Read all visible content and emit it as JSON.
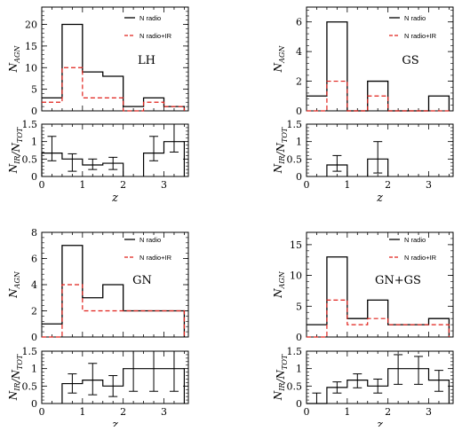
{
  "chart_data": [
    {
      "type": "step",
      "panel_label": "LH",
      "ylabel": "N_AGN",
      "xlim": [
        0,
        3.6
      ],
      "ylim": [
        0,
        24
      ],
      "yticks": [
        0,
        5,
        10,
        15,
        20
      ],
      "bin_edges": [
        0,
        0.5,
        1.0,
        1.5,
        2.0,
        2.5,
        3.0,
        3.5
      ],
      "series": [
        {
          "name": "N radio",
          "color": "#000000",
          "dash": "",
          "values": [
            3,
            20,
            9,
            8,
            1,
            3,
            1
          ]
        },
        {
          "name": "N radio+IR",
          "color": "#e0201a",
          "dash": "5,3",
          "values": [
            2,
            10,
            3,
            3,
            0,
            2,
            1
          ]
        }
      ],
      "ratio": {
        "ylabel": "N_IR/N_TOT",
        "ylim": [
          0,
          1.5
        ],
        "yticks": [
          0,
          0.5,
          1,
          1.5
        ],
        "xlabel": "z",
        "xticks": [
          0,
          1,
          2,
          3
        ],
        "values": [
          0.67,
          0.5,
          0.33,
          0.38,
          0,
          0.67,
          1.0
        ],
        "err_low": [
          0.45,
          0.15,
          0.2,
          0.2,
          null,
          0.45,
          0.7
        ],
        "err_high": [
          1.15,
          0.65,
          0.5,
          0.55,
          null,
          1.15,
          1.5
        ],
        "show_points": [
          true,
          true,
          true,
          true,
          false,
          true,
          false
        ]
      }
    },
    {
      "type": "step",
      "panel_label": "GS",
      "ylabel": "N_AGN",
      "xlim": [
        0,
        3.6
      ],
      "ylim": [
        0,
        7
      ],
      "yticks": [
        0,
        2,
        4,
        6
      ],
      "bin_edges": [
        0,
        0.5,
        1.0,
        1.5,
        2.0,
        2.5,
        3.0,
        3.5
      ],
      "series": [
        {
          "name": "N radio",
          "color": "#000000",
          "dash": "",
          "values": [
            1,
            6,
            0,
            2,
            0,
            0,
            1
          ]
        },
        {
          "name": "N radio+IR",
          "color": "#e0201a",
          "dash": "5,3",
          "values": [
            0,
            2,
            0,
            1,
            0,
            0,
            0
          ]
        }
      ],
      "ratio": {
        "ylabel": "N_IR/N_TOT",
        "ylim": [
          0,
          1.5
        ],
        "yticks": [
          0,
          0.5,
          1,
          1.5
        ],
        "xlabel": "z",
        "xticks": [
          0,
          1,
          2,
          3
        ],
        "values": [
          0,
          0.33,
          0,
          0.5,
          0,
          0,
          0
        ],
        "err_low": [
          null,
          0.15,
          null,
          0.1,
          null,
          null,
          null
        ],
        "err_high": [
          null,
          0.6,
          null,
          1.0,
          null,
          null,
          null
        ],
        "show_points": [
          false,
          true,
          false,
          true,
          false,
          false,
          false
        ]
      }
    },
    {
      "type": "step",
      "panel_label": "GN",
      "ylabel": "N_AGN",
      "xlim": [
        0,
        3.6
      ],
      "ylim": [
        0,
        8
      ],
      "yticks": [
        0,
        2,
        4,
        6,
        8
      ],
      "bin_edges": [
        0,
        0.5,
        1.0,
        1.5,
        2.0,
        2.5,
        3.0,
        3.5
      ],
      "series": [
        {
          "name": "N radio",
          "color": "#000000",
          "dash": "",
          "values": [
            1,
            7,
            3,
            4,
            2,
            2,
            2
          ]
        },
        {
          "name": "N radio+IR",
          "color": "#e0201a",
          "dash": "5,3",
          "values": [
            0,
            4,
            2,
            2,
            2,
            2,
            2
          ]
        }
      ],
      "ratio": {
        "ylabel": "N_IR/N_TOT",
        "ylim": [
          0,
          1.5
        ],
        "yticks": [
          0,
          0.5,
          1,
          1.5
        ],
        "xlabel": "z",
        "xticks": [
          0,
          1,
          2,
          3
        ],
        "values": [
          0,
          0.57,
          0.67,
          0.5,
          1.0,
          1.0,
          1.0
        ],
        "err_low": [
          null,
          0.3,
          0.25,
          0.2,
          0.35,
          0.35,
          0.35
        ],
        "err_high": [
          null,
          0.85,
          1.15,
          0.8,
          1.5,
          1.5,
          1.5
        ],
        "show_points": [
          false,
          true,
          true,
          true,
          true,
          true,
          true
        ]
      }
    },
    {
      "type": "step",
      "panel_label": "GN+GS",
      "ylabel": "N_AGN",
      "xlim": [
        0,
        3.6
      ],
      "ylim": [
        0,
        17
      ],
      "yticks": [
        0,
        5,
        10,
        15
      ],
      "bin_edges": [
        0,
        0.5,
        1.0,
        1.5,
        2.0,
        2.5,
        3.0,
        3.5
      ],
      "series": [
        {
          "name": "N radio",
          "color": "#000000",
          "dash": "",
          "values": [
            2,
            13,
            3,
            6,
            2,
            2,
            3
          ]
        },
        {
          "name": "N radio+IR",
          "color": "#e0201a",
          "dash": "5,3",
          "values": [
            0,
            6,
            2,
            3,
            2,
            2,
            2
          ]
        }
      ],
      "ratio": {
        "ylabel": "N_IR/N_TOT",
        "ylim": [
          0,
          1.5
        ],
        "yticks": [
          0,
          0.5,
          1,
          1.5
        ],
        "xlabel": "z",
        "xticks": [
          0,
          1,
          2,
          3
        ],
        "values": [
          0,
          0.46,
          0.67,
          0.5,
          1.0,
          1.0,
          0.67
        ],
        "err_low": [
          0,
          0.3,
          0.45,
          0.3,
          0.55,
          0.55,
          0.35
        ],
        "err_high": [
          0.3,
          0.62,
          0.85,
          0.7,
          1.4,
          1.35,
          0.95
        ],
        "show_points": [
          true,
          true,
          true,
          true,
          true,
          true,
          true
        ]
      }
    }
  ]
}
